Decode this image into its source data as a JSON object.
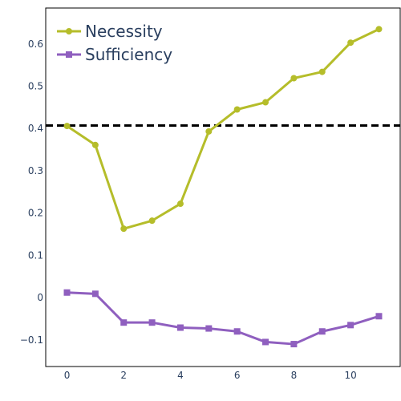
{
  "chart_data": {
    "type": "line",
    "x": [
      0,
      1,
      2,
      3,
      4,
      5,
      6,
      7,
      8,
      9,
      10,
      11
    ],
    "series": [
      {
        "name": "Necessity",
        "color": "#b5bd2a",
        "marker": "circle",
        "values": [
          0.406,
          0.361,
          0.163,
          0.182,
          0.222,
          0.393,
          0.445,
          0.462,
          0.519,
          0.534,
          0.603,
          0.635
        ]
      },
      {
        "name": "Sufficiency",
        "color": "#8f5fbf",
        "marker": "square",
        "values": [
          0.012,
          0.009,
          -0.059,
          -0.059,
          -0.071,
          -0.073,
          -0.08,
          -0.105,
          -0.11,
          -0.08,
          -0.065,
          -0.044
        ]
      }
    ],
    "reference_line": {
      "y": 0.407,
      "style": "dashed",
      "color": "#000000"
    },
    "xticks": [
      0,
      2,
      4,
      6,
      8,
      10
    ],
    "yticks": [
      -0.1,
      0,
      0.1,
      0.2,
      0.3,
      0.4,
      0.5,
      0.6
    ],
    "xtick_labels": [
      "0",
      "2",
      "4",
      "6",
      "8",
      "10"
    ],
    "ytick_labels": [
      "−0.1",
      "0",
      "0.1",
      "0.2",
      "0.3",
      "0.4",
      "0.5",
      "0.6"
    ],
    "xlim": [
      -0.75,
      11.75
    ],
    "ylim": [
      -0.163,
      0.685
    ],
    "grid": false,
    "legend_position": "top-left",
    "title": "",
    "xlabel": "",
    "ylabel": ""
  }
}
